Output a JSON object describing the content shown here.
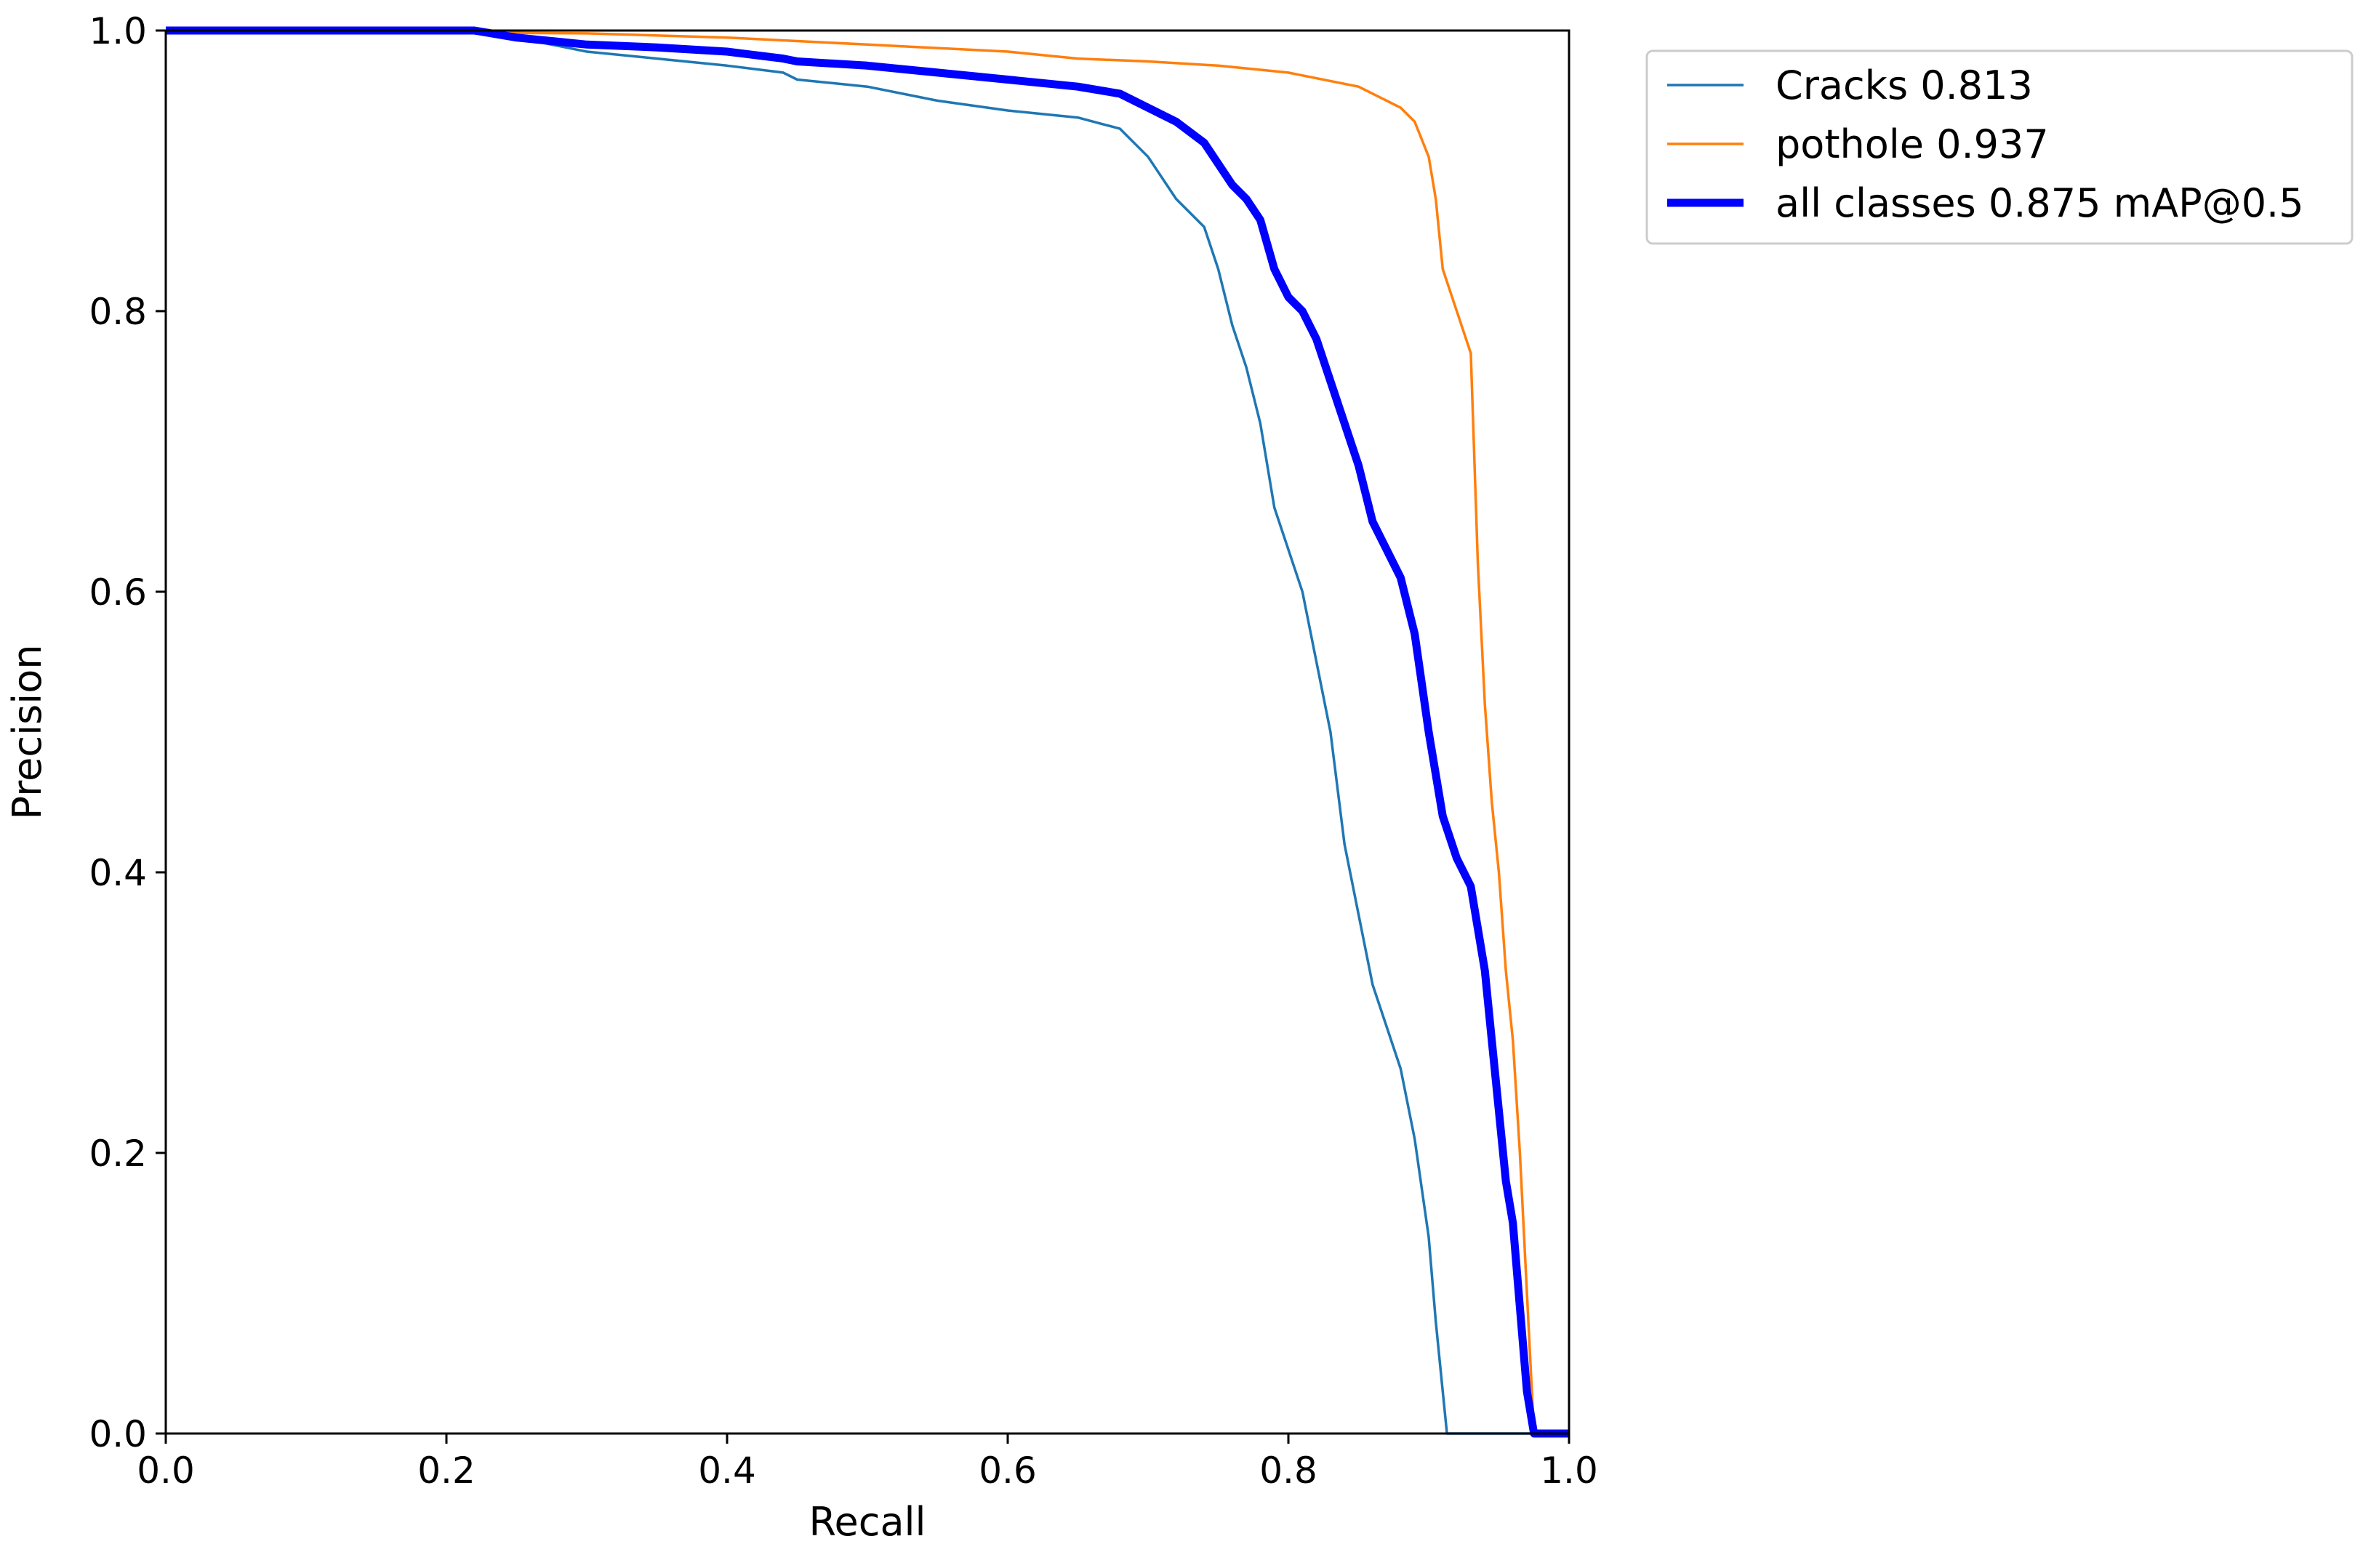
{
  "chart_data": {
    "type": "line",
    "title": "",
    "xlabel": "Recall",
    "ylabel": "Precision",
    "xlim": [
      0,
      1
    ],
    "ylim": [
      0,
      1
    ],
    "grid": false,
    "legend_position": "outside top-right",
    "x_ticks": [
      "0.0",
      "0.2",
      "0.4",
      "0.6",
      "0.8",
      "1.0"
    ],
    "y_ticks": [
      "0.0",
      "0.2",
      "0.4",
      "0.6",
      "0.8",
      "1.0"
    ],
    "series": [
      {
        "name": "Cracks 0.813",
        "color": "#1f77b4",
        "line_weight": "thin",
        "x": [
          0.0,
          0.2,
          0.25,
          0.3,
          0.35,
          0.4,
          0.44,
          0.45,
          0.5,
          0.55,
          0.6,
          0.65,
          0.68,
          0.7,
          0.72,
          0.74,
          0.75,
          0.76,
          0.77,
          0.78,
          0.79,
          0.8,
          0.81,
          0.82,
          0.83,
          0.84,
          0.85,
          0.86,
          0.87,
          0.88,
          0.89,
          0.9,
          0.905,
          0.91,
          0.913,
          1.0
        ],
        "y": [
          1.0,
          1.0,
          0.995,
          0.985,
          0.98,
          0.975,
          0.97,
          0.965,
          0.96,
          0.95,
          0.943,
          0.938,
          0.93,
          0.91,
          0.88,
          0.86,
          0.83,
          0.79,
          0.76,
          0.72,
          0.66,
          0.63,
          0.6,
          0.55,
          0.5,
          0.42,
          0.37,
          0.32,
          0.29,
          0.26,
          0.21,
          0.14,
          0.08,
          0.03,
          0.0,
          0.0
        ]
      },
      {
        "name": "pothole 0.937",
        "color": "#ff7f0e",
        "line_weight": "thin",
        "x": [
          0.0,
          0.3,
          0.4,
          0.5,
          0.6,
          0.65,
          0.7,
          0.75,
          0.8,
          0.85,
          0.87,
          0.88,
          0.89,
          0.9,
          0.905,
          0.91,
          0.92,
          0.93,
          0.935,
          0.94,
          0.945,
          0.95,
          0.955,
          0.96,
          0.965,
          0.97,
          0.975,
          1.0
        ],
        "y": [
          1.0,
          0.998,
          0.995,
          0.99,
          0.985,
          0.98,
          0.978,
          0.975,
          0.97,
          0.96,
          0.95,
          0.945,
          0.935,
          0.91,
          0.88,
          0.83,
          0.8,
          0.77,
          0.62,
          0.52,
          0.45,
          0.4,
          0.33,
          0.28,
          0.2,
          0.1,
          0.0,
          0.0
        ]
      },
      {
        "name": "all classes 0.875 mAP@0.5",
        "color": "#0000ff",
        "line_weight": "thick",
        "x": [
          0.0,
          0.22,
          0.25,
          0.3,
          0.35,
          0.4,
          0.44,
          0.45,
          0.5,
          0.55,
          0.6,
          0.65,
          0.68,
          0.7,
          0.72,
          0.74,
          0.75,
          0.76,
          0.77,
          0.78,
          0.79,
          0.8,
          0.81,
          0.82,
          0.83,
          0.84,
          0.85,
          0.86,
          0.87,
          0.88,
          0.89,
          0.9,
          0.91,
          0.92,
          0.93,
          0.94,
          0.945,
          0.95,
          0.955,
          0.96,
          0.965,
          0.97,
          0.975,
          1.0
        ],
        "y": [
          1.0,
          1.0,
          0.995,
          0.99,
          0.988,
          0.985,
          0.98,
          0.978,
          0.975,
          0.97,
          0.965,
          0.96,
          0.955,
          0.945,
          0.935,
          0.92,
          0.905,
          0.89,
          0.88,
          0.865,
          0.83,
          0.81,
          0.8,
          0.78,
          0.75,
          0.72,
          0.69,
          0.65,
          0.63,
          0.61,
          0.57,
          0.5,
          0.44,
          0.41,
          0.39,
          0.33,
          0.28,
          0.23,
          0.18,
          0.15,
          0.09,
          0.03,
          0.0,
          0.0
        ]
      }
    ]
  }
}
